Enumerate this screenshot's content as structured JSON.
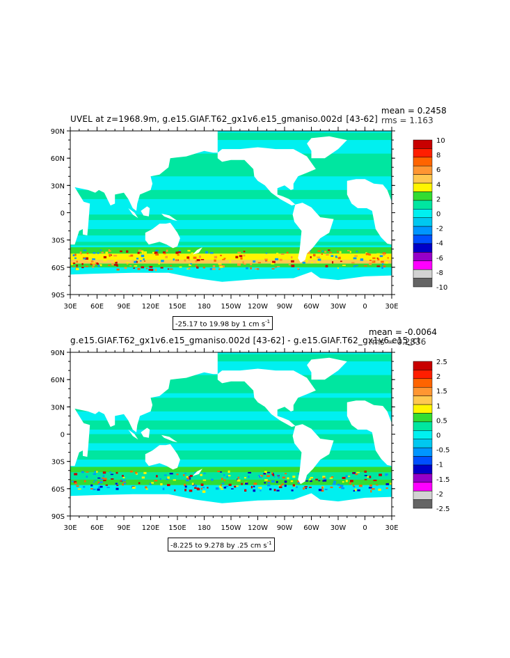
{
  "chart_data": [
    {
      "type": "heatmap",
      "title": "UVEL at z=1968.9m, g.e15.GIAF.T62_gx1v6.e15_gmaniso.002d  ​[43-62]",
      "mean_label": "mean = 0.2458",
      "rms_label": "rms = 1.163",
      "range_label": "-25.17 to 19.98 by 1 cm s",
      "range_unit_exp": "-1",
      "y_ticks": [
        "90N",
        "60N",
        "30N",
        "0",
        "30S",
        "60S",
        "90S"
      ],
      "x_ticks": [
        "30E",
        "60E",
        "90E",
        "120E",
        "150E",
        "180",
        "150W",
        "120W",
        "90W",
        "60W",
        "30W",
        "0",
        "30E"
      ],
      "colorbar_labels": [
        "10",
        "8",
        "6",
        "4",
        "2",
        "0",
        "-2",
        "-4",
        "-6",
        "-8",
        "-10"
      ],
      "colorbar_colors": [
        "#c80000",
        "#ff1e00",
        "#ff6400",
        "#ff9632",
        "#ffc850",
        "#fff500",
        "#32dc32",
        "#00e6a0",
        "#00f0f0",
        "#00c8f0",
        "#0096ff",
        "#0050ff",
        "#0000c8",
        "#9600c8",
        "#ff00ff",
        "#d2d2d2",
        "#646464"
      ],
      "colors": {
        "land": "#ffffff",
        "ocean_base": "#00f0f0",
        "light_green": "#00e6a0"
      }
    },
    {
      "type": "heatmap",
      "title": "g.e15.GIAF.T62_gx1v6.e15_gmaniso.002d [43-62] - g.e15.GIAF.T62_gx1v6.e15_ct",
      "mean_label": "mean = -0.0064",
      "rms_label": "rms = 0.2836",
      "range_label": "-8.225 to 9.278 by .25 cm s",
      "range_unit_exp": "-1",
      "y_ticks": [
        "90N",
        "60N",
        "30N",
        "0",
        "30S",
        "60S",
        "90S"
      ],
      "x_ticks": [
        "30E",
        "60E",
        "90E",
        "120E",
        "150E",
        "180",
        "150W",
        "120W",
        "90W",
        "60W",
        "30W",
        "0",
        "30E"
      ],
      "colorbar_labels": [
        "2.5",
        "2",
        "1.5",
        "1",
        "0.5",
        "0",
        "-0.5",
        "-1",
        "-1.5",
        "-2",
        "-2.5"
      ],
      "colorbar_colors": [
        "#c80000",
        "#ff1e00",
        "#ff6400",
        "#ff9632",
        "#ffc850",
        "#fff500",
        "#32dc32",
        "#00e6a0",
        "#00f0f0",
        "#00c8f0",
        "#0096ff",
        "#0050ff",
        "#0000c8",
        "#9600c8",
        "#ff00ff",
        "#d2d2d2",
        "#646464"
      ],
      "colors": {
        "land": "#ffffff",
        "ocean_base": "#00f0f0",
        "light_green": "#00e6a0"
      }
    }
  ]
}
